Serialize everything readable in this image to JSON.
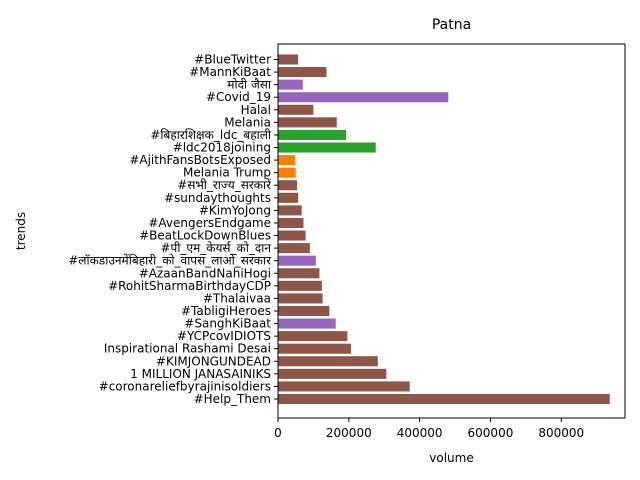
{
  "chart_data": {
    "type": "bar",
    "orientation": "horizontal",
    "title": "Patna",
    "xlabel": "volume",
    "ylabel": "trends",
    "xlim": [
      0,
      980000
    ],
    "xticks": [
      0,
      200000,
      400000,
      600000,
      800000
    ],
    "grid": false,
    "legend": "none",
    "palette": {
      "brown": "#8c564b",
      "purple": "#9467bd",
      "green": "#2ca02c",
      "orange": "#ff7f0e"
    },
    "bars": [
      {
        "label": "#BlueTwitter",
        "value": 57000,
        "color": "#8c564b"
      },
      {
        "label": "#MannKiBaat",
        "value": 137000,
        "color": "#8c564b"
      },
      {
        "label": "मोदी जैसा",
        "value": 70000,
        "color": "#9467bd"
      },
      {
        "label": "#Covid_19",
        "value": 481000,
        "color": "#9467bd"
      },
      {
        "label": "Halal",
        "value": 100000,
        "color": "#8c564b"
      },
      {
        "label": "Melania",
        "value": 166000,
        "color": "#8c564b"
      },
      {
        "label": "#बिहारशिक्षक_ldc_बहाली",
        "value": 192000,
        "color": "#2ca02c"
      },
      {
        "label": "#ldc2018joining",
        "value": 276000,
        "color": "#2ca02c"
      },
      {
        "label": "#AjithFansBotsExposed",
        "value": 48000,
        "color": "#ff7f0e"
      },
      {
        "label": "Melania Trump",
        "value": 50000,
        "color": "#ff7f0e"
      },
      {
        "label": "#सभी_राज्य_सरकारें",
        "value": 54000,
        "color": "#8c564b"
      },
      {
        "label": "#sundaythoughts",
        "value": 57000,
        "color": "#8c564b"
      },
      {
        "label": "#KimYoJong",
        "value": 67000,
        "color": "#8c564b"
      },
      {
        "label": "#AvengersEndgame",
        "value": 72000,
        "color": "#8c564b"
      },
      {
        "label": "#BeatLockDownBlues",
        "value": 78000,
        "color": "#8c564b"
      },
      {
        "label": "#पी_एम_केयर्स_को_दान",
        "value": 90000,
        "color": "#8c564b"
      },
      {
        "label": "#लॉकडाउनमेंबिहारी_को_वापस_लाओ_सरकार",
        "value": 107000,
        "color": "#9467bd"
      },
      {
        "label": "#AzaanBandNahiHogi",
        "value": 117000,
        "color": "#8c564b"
      },
      {
        "label": "#RohitSharmaBirthdayCDP",
        "value": 124000,
        "color": "#8c564b"
      },
      {
        "label": "#Thalaivaa",
        "value": 126000,
        "color": "#8c564b"
      },
      {
        "label": "#TabligiHeroes",
        "value": 145000,
        "color": "#8c564b"
      },
      {
        "label": "#SanghKiBaat",
        "value": 163000,
        "color": "#9467bd"
      },
      {
        "label": "#YCPcovIDIOTS",
        "value": 196000,
        "color": "#8c564b"
      },
      {
        "label": "Inspirational Rashami Desai",
        "value": 206000,
        "color": "#8c564b"
      },
      {
        "label": "#KIMJONGUNDEAD",
        "value": 282000,
        "color": "#8c564b"
      },
      {
        "label": "1 MILLION JANASAINIKS",
        "value": 306000,
        "color": "#8c564b"
      },
      {
        "label": "#coronareliefbyrajinisoldiers",
        "value": 372000,
        "color": "#8c564b"
      },
      {
        "label": "#Help_Them",
        "value": 937000,
        "color": "#8c564b"
      }
    ]
  }
}
